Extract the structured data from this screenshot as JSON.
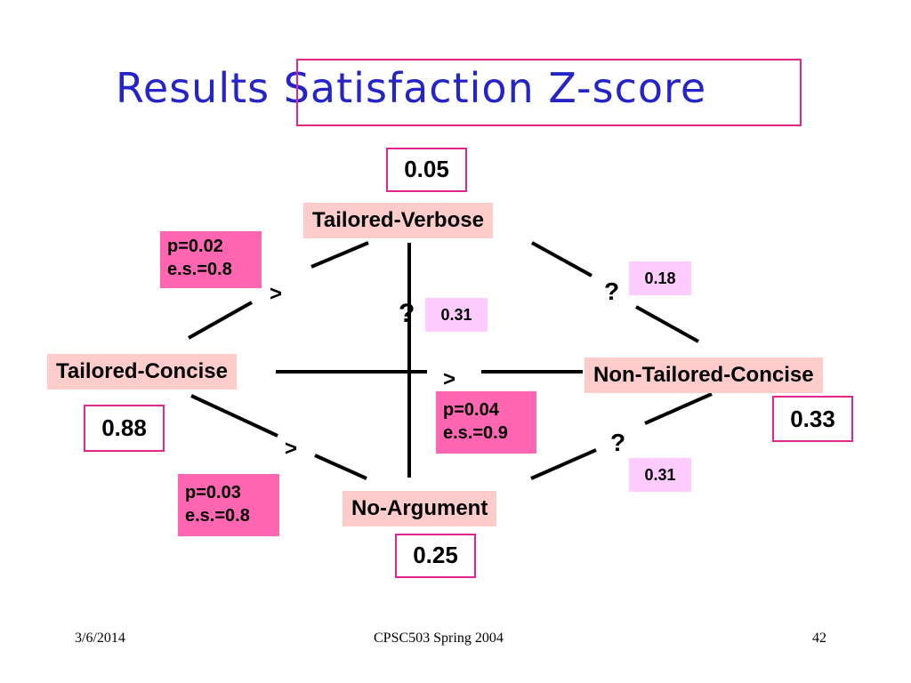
{
  "title": {
    "prefix": "Results",
    "boxed": "Satisfaction Z-score"
  },
  "nodes": {
    "tailored_verbose": {
      "label": "Tailored-Verbose",
      "score": "0.05"
    },
    "tailored_concise": {
      "label": "Tailored-Concise",
      "score": "0.88"
    },
    "non_tailored_concise": {
      "label": "Non-Tailored-Concise",
      "score": "0.33"
    },
    "no_argument": {
      "label": "No-Argument",
      "score": "0.25"
    }
  },
  "comparisons": {
    "tc_tv": {
      "relation": ">",
      "p": "p=0.02",
      "es": "e.s.=0.8"
    },
    "tc_ntc": {
      "relation": ">",
      "p": "p=0.04",
      "es": "e.s.=0.9"
    },
    "tc_na": {
      "relation": ">",
      "p": "p=0.03",
      "es": "e.s.=0.8"
    },
    "tv_na": {
      "relation": "?",
      "value": "0.31"
    },
    "tv_ntc": {
      "relation": "?",
      "value": "0.18"
    },
    "na_ntc": {
      "relation": "?",
      "value": "0.31"
    }
  },
  "footer": {
    "date": "3/6/2014",
    "course": "CPSC503 Spring 2004",
    "page": "42"
  },
  "colors": {
    "title": "#2424c8",
    "accent": "#e4268c",
    "node_bg": "#ffcccc",
    "sig_bg": "#ff66b2",
    "nonsig_bg": "#ffccff"
  }
}
